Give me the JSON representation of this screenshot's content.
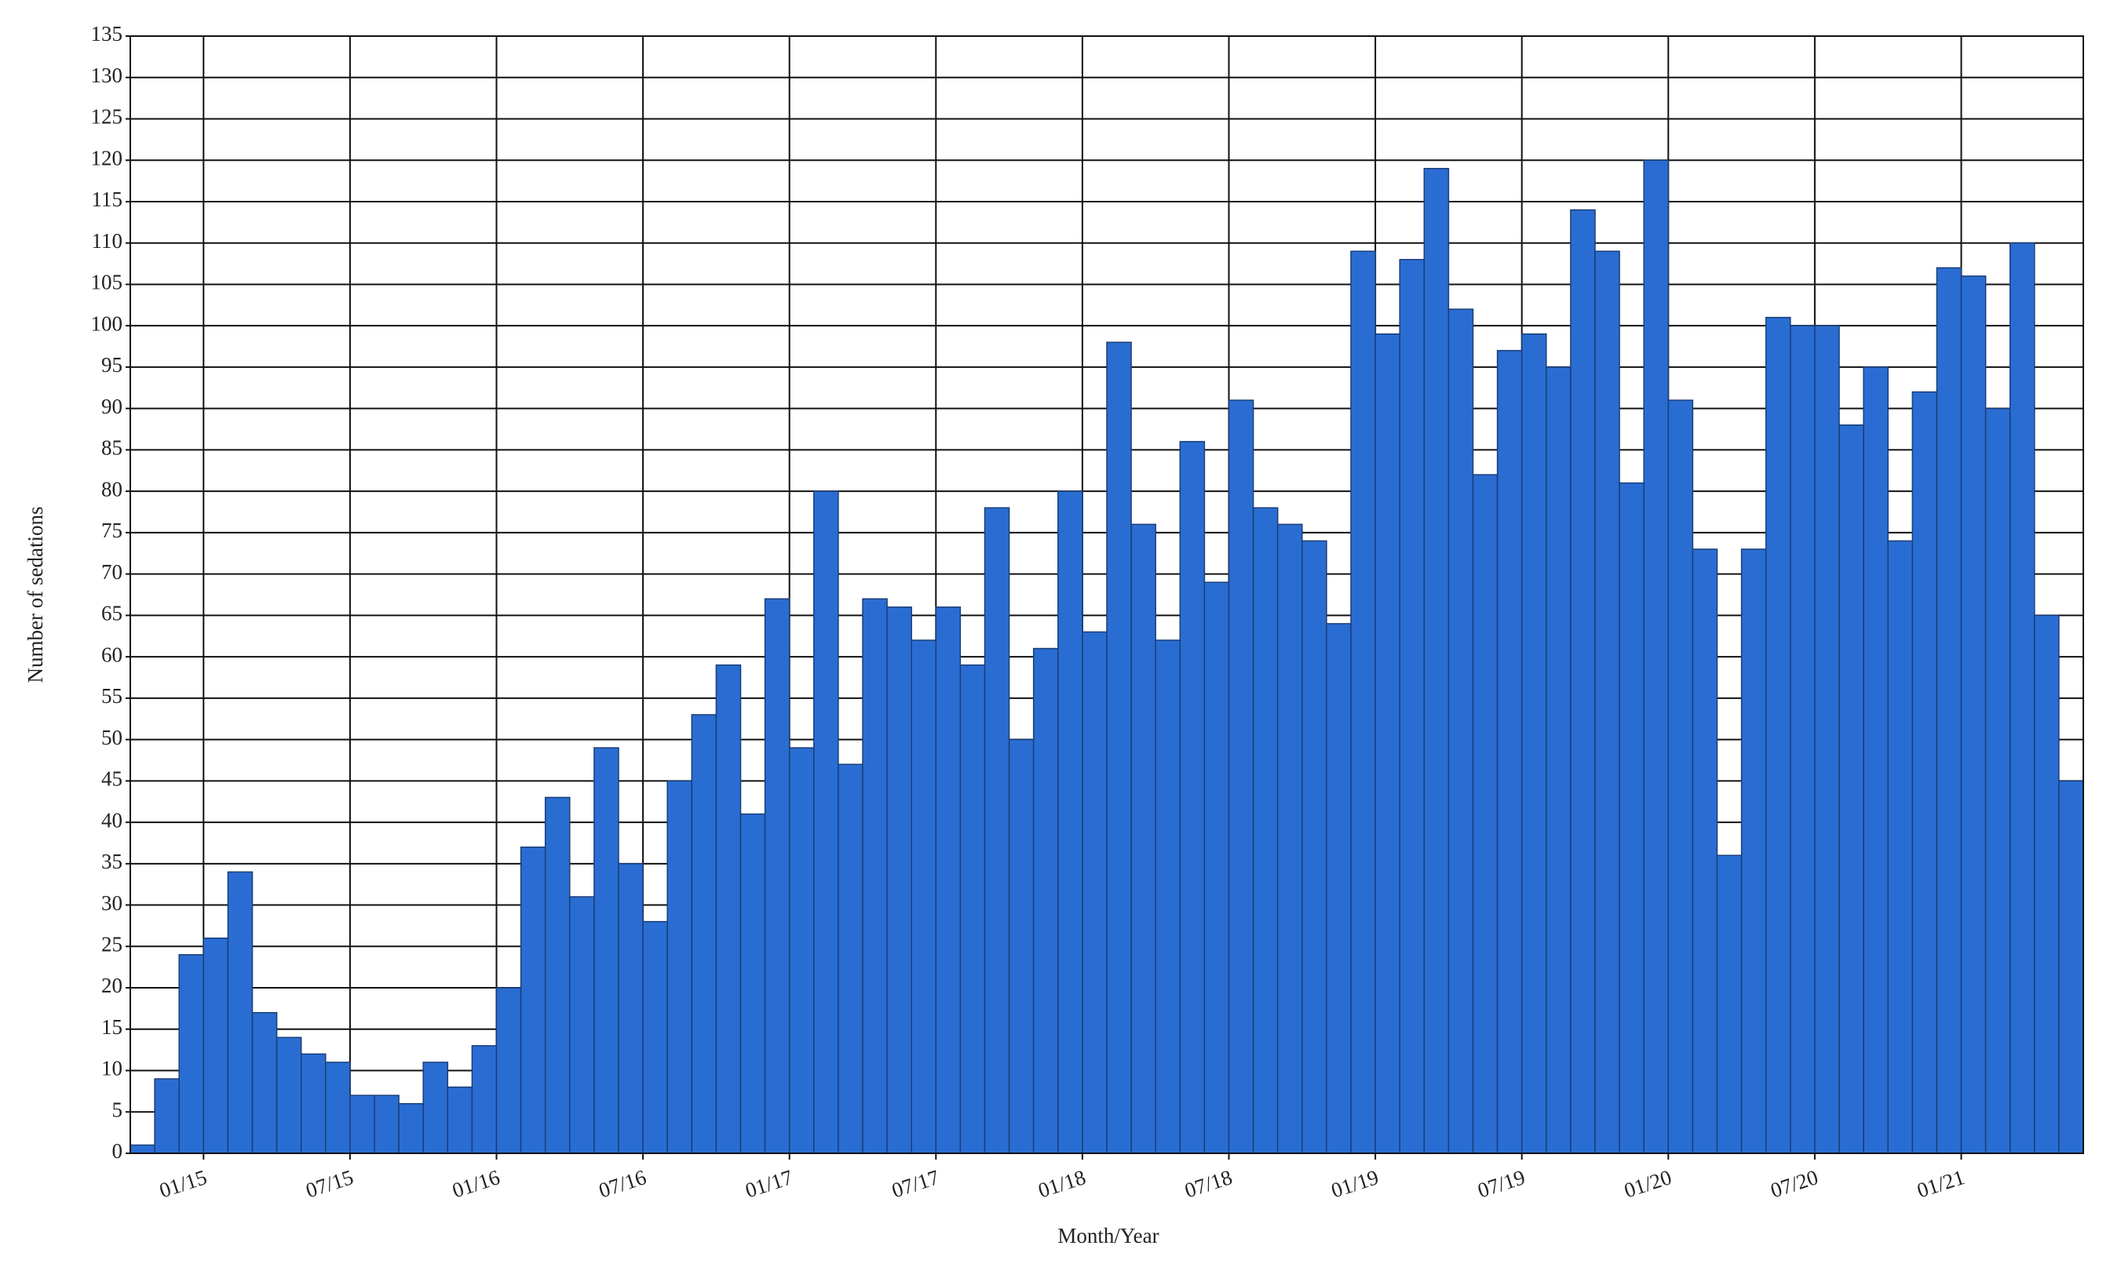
{
  "chart_data": {
    "type": "bar",
    "x_label": "Month/Year",
    "y_label": "Number of sedations",
    "categories": [
      null,
      null,
      null,
      "01/15",
      null,
      null,
      null,
      null,
      null,
      "07/15",
      null,
      null,
      null,
      null,
      null,
      "01/16",
      null,
      null,
      null,
      null,
      null,
      "07/16",
      null,
      null,
      null,
      null,
      null,
      "01/17",
      null,
      null,
      null,
      null,
      null,
      "07/17",
      null,
      null,
      null,
      null,
      null,
      "01/18",
      null,
      null,
      null,
      null,
      null,
      "07/18",
      null,
      null,
      null,
      null,
      null,
      "01/19",
      null,
      null,
      null,
      null,
      null,
      "07/19",
      null,
      null,
      null,
      null,
      null,
      "01/20",
      null,
      null,
      null,
      null,
      null,
      "07/20",
      null,
      null,
      null,
      null,
      null,
      "01/21",
      null,
      null,
      null,
      null
    ],
    "values": [
      1,
      9,
      24,
      26,
      34,
      17,
      14,
      12,
      11,
      7,
      7,
      6,
      11,
      8,
      13,
      20,
      37,
      43,
      31,
      49,
      35,
      28,
      45,
      53,
      59,
      41,
      67,
      49,
      80,
      47,
      67,
      66,
      62,
      66,
      59,
      78,
      50,
      61,
      80,
      63,
      98,
      76,
      62,
      86,
      69,
      91,
      78,
      76,
      74,
      64,
      109,
      99,
      108,
      119,
      102,
      82,
      97,
      99,
      95,
      114,
      109,
      81,
      120,
      91,
      73,
      36,
      73,
      101,
      100,
      100,
      88,
      95,
      74,
      92,
      107,
      106,
      90,
      110,
      65,
      45
    ],
    "color": "#2a6dd2",
    "ylim": [
      0,
      135
    ],
    "yticks": [
      0,
      5,
      10,
      15,
      20,
      25,
      30,
      35,
      40,
      45,
      50,
      55,
      60,
      65,
      70,
      75,
      80,
      85,
      90,
      95,
      100,
      105,
      110,
      115,
      120,
      125,
      130,
      135
    ],
    "grid": true
  }
}
